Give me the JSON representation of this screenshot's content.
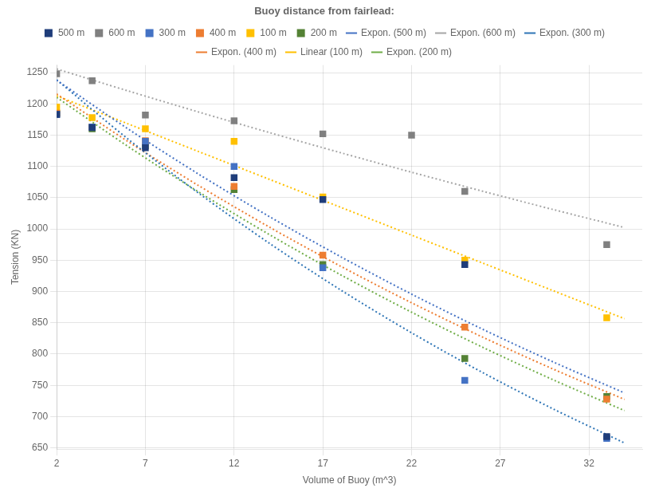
{
  "chart_data": {
    "type": "scatter",
    "xlabel": "Volume of Buoy (m^3)",
    "ylabel": "Tension (KN)",
    "xlim": [
      2,
      35
    ],
    "ylim": [
      648,
      1262
    ],
    "xticks": [
      2,
      7,
      12,
      17,
      22,
      27,
      32
    ],
    "yticks": [
      650,
      700,
      750,
      800,
      850,
      900,
      950,
      1000,
      1050,
      1100,
      1150,
      1200,
      1250
    ],
    "grid": true,
    "legend": "top",
    "legend_title": "Buoy distance from fairlead:",
    "series": [
      {
        "name": "500 m",
        "color": "#1f3d7a",
        "marker": "square",
        "x": [
          2,
          4,
          7,
          12,
          17,
          25,
          33
        ],
        "values": [
          1183,
          1162,
          1130,
          1082,
          1047,
          943,
          668
        ]
      },
      {
        "name": "600 m",
        "color": "#808080",
        "marker": "square",
        "x": [
          2,
          4,
          7,
          12,
          17,
          22,
          25,
          33
        ],
        "values": [
          1248,
          1237,
          1182,
          1173,
          1152,
          1150,
          1060,
          975
        ]
      },
      {
        "name": "300 m",
        "color": "#4472c4",
        "marker": "square",
        "x": [
          2,
          4,
          7,
          12,
          17,
          25,
          33
        ],
        "values": [
          1183,
          1163,
          1140,
          1100,
          938,
          758,
          665
        ]
      },
      {
        "name": "400 m",
        "color": "#ed7d31",
        "marker": "square",
        "x": [
          2,
          4,
          7,
          12,
          17,
          25,
          33
        ],
        "values": [
          1185,
          1163,
          1141,
          1068,
          958,
          843,
          728
        ]
      },
      {
        "name": "100 m",
        "color": "#ffc000",
        "marker": "square",
        "x": [
          2,
          4,
          7,
          12,
          17,
          25,
          33
        ],
        "values": [
          1195,
          1178,
          1160,
          1140,
          1051,
          950,
          858
        ]
      },
      {
        "name": "200 m",
        "color": "#548235",
        "marker": "square",
        "x": [
          2,
          4,
          7,
          12,
          17,
          25,
          33
        ],
        "values": [
          1185,
          1160,
          1133,
          1063,
          943,
          793,
          732
        ]
      },
      {
        "name": "Expon. (500 m)",
        "type": "line",
        "line_style": "dotted",
        "marker": "none",
        "color": "#4472c4",
        "x": [
          2,
          6,
          10,
          14,
          18,
          22,
          26,
          30,
          34
        ],
        "values": [
          1237.88,
          1160.34,
          1087.66,
          1019.53,
          955.67,
          895.81,
          839.7,
          787.1,
          737.8
        ]
      },
      {
        "name": "Expon. (600 m)",
        "type": "line",
        "line_style": "dotted",
        "marker": "none",
        "color": "#a6a6a6",
        "x": [
          2,
          6,
          10,
          14,
          18,
          22,
          26,
          30,
          34
        ],
        "values": [
          1255.81,
          1220.9,
          1186.96,
          1153.97,
          1121.89,
          1090.71,
          1060.39,
          1030.91,
          1002.25
        ]
      },
      {
        "name": "Expon. (300 m)",
        "type": "line",
        "line_style": "dotted",
        "marker": "none",
        "color": "#2e75b6",
        "x": [
          2,
          6,
          10,
          14,
          18,
          22,
          26,
          30,
          34
        ],
        "values": [
          1238.37,
          1144.21,
          1057.21,
          976.83,
          902.55,
          833.93,
          770.52,
          711.93,
          657.8
        ]
      },
      {
        "name": "Expon. (400 m)",
        "type": "line",
        "line_style": "dotted",
        "marker": "none",
        "color": "#ed7d31",
        "x": [
          2,
          6,
          10,
          14,
          18,
          22,
          26,
          30,
          34
        ],
        "values": [
          1215.75,
          1140.16,
          1069.26,
          1002.77,
          940.42,
          881.95,
          827.11,
          775.68,
          727.45
        ]
      },
      {
        "name": "Linear (100 m)",
        "type": "line",
        "line_style": "dotted",
        "marker": "none",
        "color": "#ffc000",
        "x": [
          2,
          6,
          10,
          14,
          18,
          22,
          26,
          30,
          34
        ],
        "values": [
          1212.78,
          1168.25,
          1123.71,
          1079.18,
          1034.65,
          990.11,
          945.58,
          901.04,
          856.51
        ]
      },
      {
        "name": "Expon. (200 m)",
        "type": "line",
        "line_style": "dotted",
        "marker": "none",
        "color": "#70ad47",
        "x": [
          2,
          6,
          10,
          14,
          18,
          22,
          26,
          30,
          34
        ],
        "values": [
          1210.47,
          1132.29,
          1059.16,
          990.75,
          926.76,
          866.9,
          810.91,
          758.54,
          709.55
        ]
      }
    ]
  }
}
